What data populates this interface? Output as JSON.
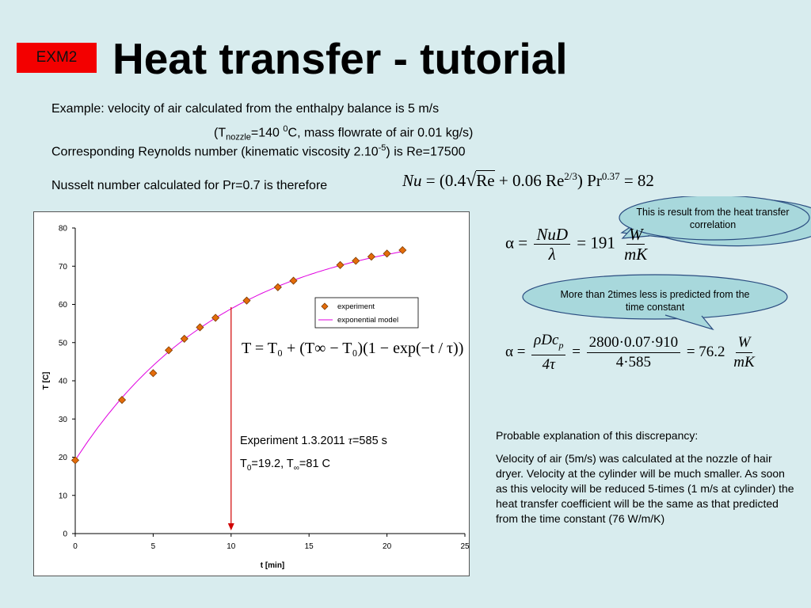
{
  "badge": "EXM2",
  "title": "Heat transfer - tutorial",
  "intro": {
    "line1": "Example: velocity of air calculated from the enthalpy balance is 5 m/s",
    "line2_a": "(T",
    "line2_sub": "nozzle",
    "line2_b": "=140 ",
    "line2_sup": "0",
    "line2_c": "C, mass flowrate of air 0.01 kg/s)",
    "line3_a": "Corresponding Reynolds number (kinematic viscosity 2.10",
    "line3_sup": "-5",
    "line3_b": ") is Re=17500",
    "line4": "Nusselt number calculated for Pr=0.7 is therefore"
  },
  "formulas": {
    "nusselt": {
      "a": "Nu",
      "b": " = (0.4",
      "c": "Re",
      "d": " + 0.06 Re",
      "d_sup": "2/3",
      "e": ") Pr",
      "e_sup": "0.37",
      "f": " = 82"
    },
    "alpha1": {
      "lhs": "α =",
      "num": "NuD",
      "den": "λ",
      "mid": "= 191",
      "unit_num": "W",
      "unit_den": "mK"
    },
    "alpha2": {
      "lhs": "α =",
      "num1": "ρDc",
      "num1_sub": "p",
      "den1": "4τ",
      "eq": "=",
      "num2": "2800·0.07·910",
      "den2": "4·585",
      "mid": "= 76.2",
      "unit_num": "W",
      "unit_den": "mK"
    },
    "model": "T = T₀ + (T∞ − T₀)(1 − exp(−t / τ))"
  },
  "callouts": {
    "first": "This is result from the heat transfer correlation",
    "second": "More than 2times less is predicted from the time constant"
  },
  "explanation": {
    "heading": "Probable explanation of this discrepancy:",
    "body": "Velocity of air (5m/s) was calculated at the nozzle of hair dryer. Velocity at the cylinder will be much smaller. As soon as this velocity will be reduced 5-times (1 m/s at cylinder) the heat transfer coefficient will be the same as that predicted from the time constant (76 W/m/K)"
  },
  "chart_annotations": {
    "experiment_a": "Experiment 1.3.2011 ",
    "tau": "τ",
    "experiment_b": "=585 s",
    "t0_a": "T",
    "t0_sub": "0",
    "t0_b": "=19.2, T",
    "tinf_sub": "∞",
    "t0_c": "=81 C"
  },
  "colors": {
    "background": "#d8ecee",
    "badge": "#f30000",
    "callout_fill": "#a8d8dc",
    "callout_stroke": "#2a4c80",
    "marker": "#e46c0a",
    "model_line": "#e000e0",
    "arrow": "#d00000"
  },
  "chart_data": {
    "type": "scatter",
    "xlabel": "t [min]",
    "ylabel": "T [C]",
    "xlim": [
      0,
      25
    ],
    "ylim": [
      0,
      80
    ],
    "xticks": [
      0,
      5,
      10,
      15,
      20,
      25
    ],
    "yticks": [
      0,
      10,
      20,
      30,
      40,
      50,
      60,
      70,
      80
    ],
    "grid": false,
    "legend": "top-right",
    "series": [
      {
        "name": "experiment",
        "kind": "markers",
        "x": [
          0,
          3,
          5,
          6,
          7,
          8,
          9,
          11,
          13,
          14,
          17,
          18,
          19,
          20,
          21
        ],
        "y": [
          19.2,
          35,
          42,
          48,
          51,
          54,
          56.5,
          61,
          64.5,
          66.2,
          70.3,
          71.4,
          72.5,
          73.3,
          74.2
        ]
      },
      {
        "name": "exponential model",
        "kind": "line",
        "T0": 19.2,
        "Tinf": 81,
        "tau_s": 585,
        "x_range": [
          0,
          21
        ]
      }
    ],
    "marker_at": 10
  }
}
